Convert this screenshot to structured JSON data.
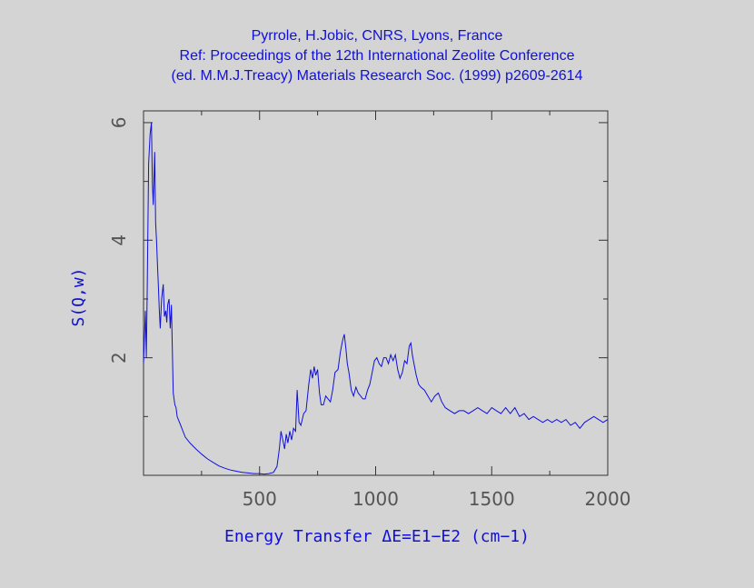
{
  "title_lines": [
    "Pyrrole, H.Jobic, CNRS, Lyons, France",
    "Ref: Proceedings of the 12th International Zeolite Conference",
    "(ed. M.M.J.Treacy) Materials Research Soc. (1999) p2609-2614"
  ],
  "colors": {
    "background": "#d4d4d4",
    "line": "#1010d8",
    "axes": "#333333",
    "tick_text": "#555555",
    "label_text": "#1010d8"
  },
  "chart_data": {
    "type": "line",
    "title": "Pyrrole, H.Jobic, CNRS, Lyons, France",
    "xlabel": "Energy Transfer ΔE=E1−E2 (cm−1)",
    "ylabel": "S(Q,w)",
    "xlim": [
      0,
      2000
    ],
    "ylim": [
      0,
      6.2
    ],
    "x_ticks": [
      500,
      1000,
      1500,
      2000
    ],
    "y_ticks": [
      2,
      4,
      6
    ],
    "grid": false,
    "series": [
      {
        "x": [
          0,
          8,
          12,
          16,
          22,
          28,
          34,
          38,
          42,
          48,
          52,
          56,
          60,
          64,
          68,
          72,
          78,
          85,
          90,
          96,
          100,
          104,
          110,
          115,
          120,
          128,
          135,
          140,
          145,
          150,
          160,
          170,
          180,
          200,
          225,
          250,
          275,
          300,
          325,
          350,
          375,
          400,
          425,
          450,
          475,
          500,
          520,
          540,
          560,
          575,
          585,
          592,
          600,
          608,
          615,
          622,
          630,
          638,
          646,
          655,
          662,
          670,
          678,
          690,
          700,
          712,
          720,
          728,
          735,
          742,
          750,
          758,
          765,
          775,
          785,
          795,
          805,
          815,
          825,
          838,
          848,
          858,
          865,
          872,
          878,
          885,
          895,
          905,
          915,
          925,
          935,
          945,
          955,
          965,
          975,
          985,
          995,
          1005,
          1015,
          1025,
          1035,
          1045,
          1055,
          1065,
          1075,
          1085,
          1095,
          1105,
          1115,
          1125,
          1135,
          1145,
          1152,
          1158,
          1165,
          1175,
          1185,
          1195,
          1210,
          1225,
          1240,
          1255,
          1270,
          1285,
          1300,
          1320,
          1340,
          1360,
          1380,
          1400,
          1420,
          1440,
          1460,
          1480,
          1500,
          1520,
          1540,
          1560,
          1580,
          1600,
          1620,
          1640,
          1660,
          1680,
          1700,
          1720,
          1740,
          1760,
          1780,
          1800,
          1820,
          1840,
          1860,
          1880,
          1900,
          1920,
          1940,
          1960,
          1980,
          2000
        ],
        "y": [
          1.9,
          2.8,
          2.0,
          3.2,
          5.3,
          5.8,
          6.0,
          5.0,
          4.6,
          5.5,
          4.3,
          4.0,
          3.6,
          3.2,
          2.8,
          2.5,
          3.0,
          3.25,
          2.7,
          2.8,
          2.6,
          2.9,
          3.0,
          2.5,
          2.9,
          1.4,
          1.2,
          1.15,
          1.0,
          0.95,
          0.85,
          0.75,
          0.65,
          0.55,
          0.45,
          0.36,
          0.28,
          0.22,
          0.16,
          0.12,
          0.09,
          0.07,
          0.05,
          0.04,
          0.03,
          0.03,
          0.02,
          0.03,
          0.05,
          0.15,
          0.45,
          0.75,
          0.6,
          0.45,
          0.7,
          0.55,
          0.75,
          0.6,
          0.8,
          0.75,
          1.45,
          0.9,
          0.85,
          1.05,
          1.1,
          1.55,
          1.8,
          1.65,
          1.85,
          1.7,
          1.8,
          1.4,
          1.2,
          1.2,
          1.35,
          1.3,
          1.25,
          1.45,
          1.75,
          1.8,
          2.1,
          2.3,
          2.4,
          2.15,
          1.9,
          1.75,
          1.45,
          1.35,
          1.5,
          1.4,
          1.35,
          1.3,
          1.3,
          1.45,
          1.55,
          1.75,
          1.95,
          2.0,
          1.9,
          1.85,
          2.0,
          2.0,
          1.9,
          2.05,
          1.95,
          2.05,
          1.8,
          1.65,
          1.75,
          1.95,
          1.9,
          2.2,
          2.25,
          2.05,
          1.9,
          1.7,
          1.55,
          1.5,
          1.45,
          1.35,
          1.25,
          1.35,
          1.4,
          1.25,
          1.15,
          1.1,
          1.05,
          1.1,
          1.1,
          1.05,
          1.1,
          1.15,
          1.1,
          1.05,
          1.15,
          1.1,
          1.05,
          1.15,
          1.05,
          1.15,
          1.0,
          1.05,
          0.95,
          1.0,
          0.95,
          0.9,
          0.95,
          0.9,
          0.95,
          0.9,
          0.95,
          0.85,
          0.9,
          0.8,
          0.9,
          0.95,
          1.0,
          0.95,
          0.9,
          0.95
        ]
      }
    ]
  }
}
